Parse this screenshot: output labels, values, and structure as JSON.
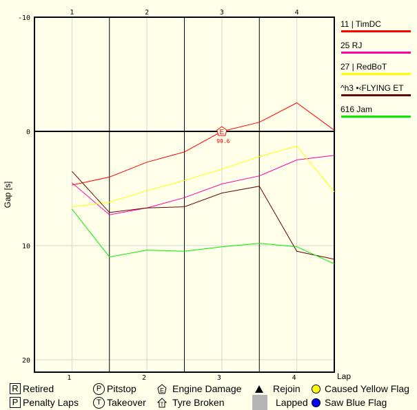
{
  "chart_data": {
    "type": "line",
    "title": "",
    "xlabel": "Lap",
    "ylabel": "Gap [s]",
    "y_inverted": true,
    "ylim": [
      -10,
      21
    ],
    "xlim": [
      0.5,
      4.5
    ],
    "x_ticks": [
      "1",
      "2",
      "3",
      "4"
    ],
    "y_ticks": [
      "-10",
      "0",
      "10",
      "20"
    ],
    "x": [
      1,
      1.5,
      2,
      2.5,
      3,
      3.5,
      4,
      4.5
    ],
    "series": [
      {
        "name": "11 | TimDC",
        "color": "#ff0000",
        "values": [
          4.7,
          4.0,
          2.7,
          1.8,
          0.0,
          -0.8,
          -2.5,
          -0.1
        ]
      },
      {
        "name": "25 RJ",
        "color": "#ff00aa",
        "values": [
          4.5,
          7.3,
          6.7,
          5.8,
          4.6,
          3.9,
          2.5,
          2.1
        ]
      },
      {
        "name": "27 | RedBoT",
        "color": "#ffff00",
        "values": [
          6.6,
          6.2,
          5.2,
          4.3,
          3.3,
          2.2,
          1.3,
          5.3
        ]
      },
      {
        "name": "^h3 •‹FLYING ET",
        "color": "#660000",
        "values": [
          3.5,
          7.1,
          6.7,
          6.6,
          5.4,
          4.8,
          10.5,
          11.2
        ]
      },
      {
        "name": "616 Jam",
        "color": "#00ee00",
        "values": [
          6.8,
          11.0,
          10.4,
          10.5,
          10.1,
          9.8,
          10.1,
          11.6
        ]
      }
    ],
    "annotations": [
      {
        "type": "engine-damage",
        "series": "11 | TimDC",
        "x": 3,
        "y": 0.0,
        "label": "99.6",
        "symbol": "E"
      }
    ],
    "grid": true,
    "legend_position": "right"
  },
  "legend": {
    "drivers": [
      {
        "label": "11 | TimDC",
        "color": "#ff0000"
      },
      {
        "label": "25 RJ",
        "color": "#ff00aa"
      },
      {
        "label": "27 | RedBoT",
        "color": "#ffff00"
      },
      {
        "label": "^h3 •‹FLYING ET",
        "color": "#660000"
      },
      {
        "label": "616 Jam",
        "color": "#00ee00"
      }
    ],
    "events": {
      "retired": {
        "symbol": "R",
        "label": "Retired"
      },
      "penalty": {
        "symbol": "P",
        "label": "Penalty Laps"
      },
      "pitstop": {
        "symbol": "P",
        "label": "Pitstop"
      },
      "takeover": {
        "symbol": "T",
        "label": "Takeover"
      },
      "engine": {
        "symbol": "E",
        "label": "Engine Damage"
      },
      "tyre": {
        "symbol": "T",
        "label": "Tyre Broken"
      },
      "rejoin": {
        "label": "Rejoin"
      },
      "lapped": {
        "label": "Lapped"
      },
      "yellow": {
        "label": "Caused Yellow Flag",
        "color": "#ffff00"
      },
      "blue": {
        "label": "Saw Blue Flag",
        "color": "#0000ff"
      }
    }
  }
}
